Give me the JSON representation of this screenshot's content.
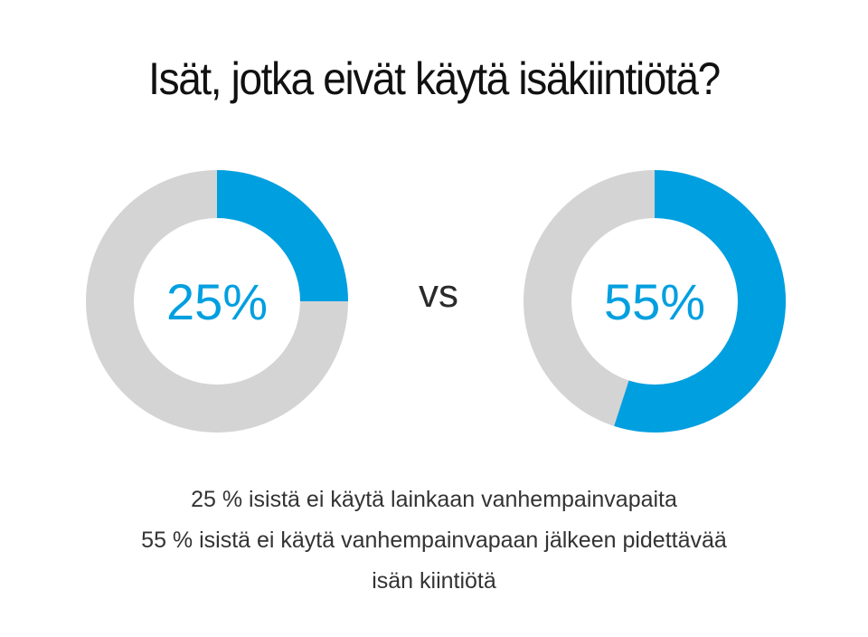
{
  "title": "Isät, jotka eivät käytä isäkiintiötä?",
  "vs_label": "vs",
  "colors": {
    "accent": "#009fe0",
    "track": "#d4d4d4",
    "background": "#ffffff"
  },
  "chart_data": [
    {
      "type": "pie",
      "style": "donut",
      "value_percent": 25,
      "label": "25%",
      "start": "top",
      "direction": "clockwise"
    },
    {
      "type": "pie",
      "style": "donut",
      "value_percent": 55,
      "label": "55%",
      "start": "top",
      "direction": "clockwise"
    }
  ],
  "captions": [
    "25 % isistä ei käytä lainkaan vanhempainvapaita",
    "55 % isistä ei käytä vanhempainvapaan jälkeen pidettävää",
    "isän kiintiötä"
  ]
}
